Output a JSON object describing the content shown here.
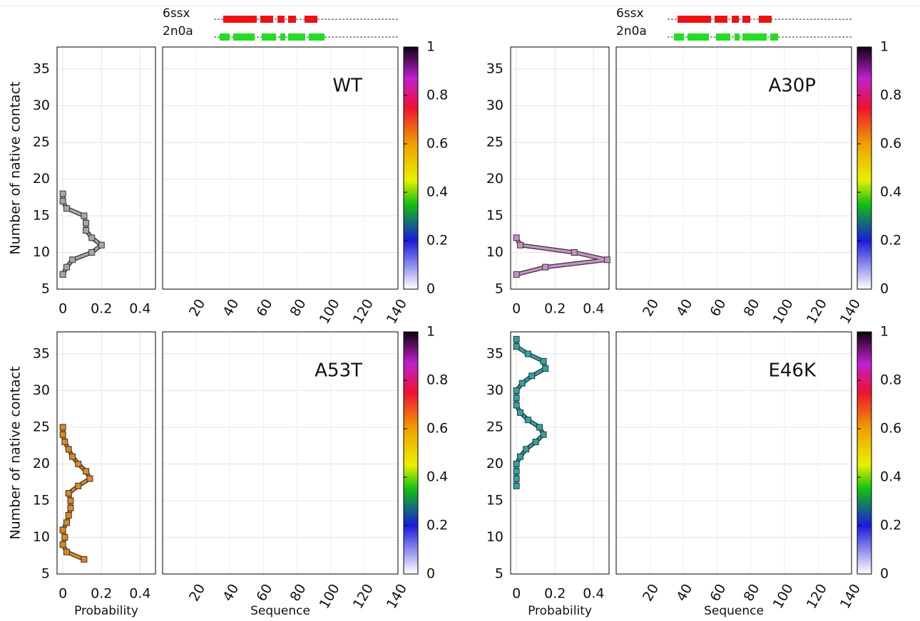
{
  "chart_data": [
    {
      "type": "line",
      "ylabel": "Number of native contact",
      "color": "#a8a8a8",
      "y": [
        7,
        8,
        9,
        10,
        11,
        12,
        13,
        14,
        15,
        16,
        17,
        18
      ],
      "values": [
        0,
        0.02,
        0.05,
        0.15,
        0.2,
        0.15,
        0.12,
        0.12,
        0.11,
        0.02,
        0,
        0
      ],
      "xlim": [
        -0.03,
        0.48
      ],
      "xticks": [
        0,
        0.2,
        0.4
      ],
      "ylim": [
        5,
        38
      ],
      "yticks": [
        5,
        10,
        15,
        20,
        25,
        30,
        35
      ],
      "grid": true
    },
    {
      "type": "heatmap",
      "annotation": "WT",
      "tracks": [
        "6ssx",
        "2n0a"
      ],
      "xlim": [
        0,
        140
      ],
      "xticks": [
        20,
        40,
        60,
        80,
        100,
        120,
        140
      ],
      "ylim": [
        5,
        38
      ],
      "yticks": [
        5,
        10,
        15,
        20,
        25,
        30,
        35
      ],
      "grid": true,
      "colorbar": {
        "lim": [
          0,
          1
        ],
        "ticks": [
          0,
          0.2,
          0.4,
          0.6,
          0.8,
          1
        ]
      }
    },
    {
      "type": "line",
      "color": "#c990c9",
      "y": [
        7,
        8,
        9,
        10,
        11,
        12
      ],
      "values": [
        0,
        0.15,
        0.47,
        0.3,
        0.02,
        0
      ],
      "xlim": [
        -0.03,
        0.48
      ],
      "xticks": [
        0,
        0.2,
        0.4
      ],
      "ylim": [
        5,
        38
      ],
      "yticks": [
        5,
        10,
        15,
        20,
        25,
        30,
        35
      ],
      "grid": true
    },
    {
      "type": "heatmap",
      "annotation": "A30P",
      "tracks": [
        "6ssx",
        "2n0a"
      ],
      "xlim": [
        0,
        140
      ],
      "xticks": [
        20,
        40,
        60,
        80,
        100,
        120,
        140
      ],
      "ylim": [
        5,
        38
      ],
      "yticks": [
        5,
        10,
        15,
        20,
        25,
        30,
        35
      ],
      "grid": true,
      "colorbar": {
        "lim": [
          0,
          1
        ],
        "ticks": [
          0,
          0.2,
          0.4,
          0.6,
          0.8,
          1
        ]
      }
    },
    {
      "type": "line",
      "ylabel": "Number of native contact",
      "xlabel": "Probability",
      "color": "#e0881e",
      "y": [
        7,
        8,
        9,
        10,
        11,
        12,
        13,
        14,
        15,
        16,
        17,
        18,
        19,
        20,
        21,
        22,
        23,
        24,
        25
      ],
      "values": [
        0.11,
        0.02,
        0,
        0.01,
        0,
        0.02,
        0.03,
        0.04,
        0.04,
        0.03,
        0.08,
        0.14,
        0.12,
        0.08,
        0.05,
        0.03,
        0.01,
        0,
        0
      ],
      "xlim": [
        -0.03,
        0.48
      ],
      "xticks": [
        0,
        0.2,
        0.4
      ],
      "ylim": [
        5,
        38
      ],
      "yticks": [
        5,
        10,
        15,
        20,
        25,
        30,
        35
      ],
      "grid": true
    },
    {
      "type": "heatmap",
      "annotation": "A53T",
      "xlabel": "Sequence",
      "xlim": [
        0,
        140
      ],
      "xticks": [
        20,
        40,
        60,
        80,
        100,
        120,
        140
      ],
      "ylim": [
        5,
        38
      ],
      "yticks": [
        5,
        10,
        15,
        20,
        25,
        30,
        35
      ],
      "grid": true,
      "colorbar": {
        "lim": [
          0,
          1
        ],
        "ticks": [
          0,
          0.2,
          0.4,
          0.6,
          0.8,
          1
        ]
      }
    },
    {
      "type": "line",
      "xlabel": "Probability",
      "color": "#2aa6a6",
      "y": [
        17,
        18,
        19,
        20,
        21,
        22,
        23,
        24,
        25,
        26,
        27,
        28,
        29,
        30,
        31,
        32,
        33,
        34,
        35,
        36,
        37
      ],
      "values": [
        0,
        0,
        0,
        0,
        0.02,
        0.05,
        0.1,
        0.14,
        0.12,
        0.06,
        0.02,
        0,
        0,
        0,
        0.03,
        0.08,
        0.15,
        0.14,
        0.06,
        0,
        0
      ],
      "xlim": [
        -0.03,
        0.48
      ],
      "xticks": [
        0,
        0.2,
        0.4
      ],
      "ylim": [
        5,
        38
      ],
      "yticks": [
        5,
        10,
        15,
        20,
        25,
        30,
        35
      ],
      "grid": true
    },
    {
      "type": "heatmap",
      "annotation": "E46K",
      "xlabel": "Sequence",
      "xlim": [
        0,
        140
      ],
      "xticks": [
        20,
        40,
        60,
        80,
        100,
        120,
        140
      ],
      "ylim": [
        5,
        38
      ],
      "yticks": [
        5,
        10,
        15,
        20,
        25,
        30,
        35
      ],
      "grid": true,
      "colorbar": {
        "lim": [
          0,
          1
        ],
        "ticks": [
          0,
          0.2,
          0.4,
          0.6,
          0.8,
          1
        ]
      }
    }
  ]
}
